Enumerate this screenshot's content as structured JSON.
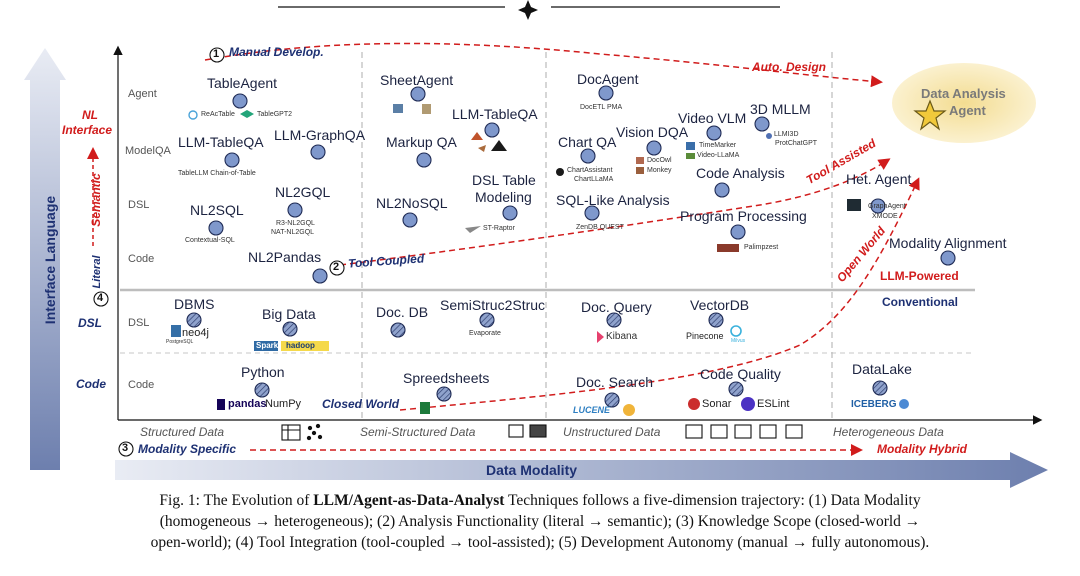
{
  "axes": {
    "y_axis_label": "Interface Language",
    "x_axis_label": "Data Modality"
  },
  "header_marks": {
    "manual_develop": "Manual Develop.",
    "auto_design": "Auto. Design",
    "tool_coupled": "Tool Coupled",
    "tool_assisted": "Tool Assisted",
    "open_world": "Open World",
    "closed_world": "Closed World",
    "semantic": "Semantic",
    "literal": "Literal",
    "modality_specific": "Modality Specific",
    "modality_hybrid": "Modality Hybrid",
    "llm_powered": "LLM-Powered",
    "conventional": "Conventional",
    "num1": "1",
    "num2": "2",
    "num3": "3",
    "num4": "4"
  },
  "left_labels": {
    "nl_interface_1": "NL",
    "nl_interface_2": "Interface",
    "dsl": "DSL",
    "code": "Code"
  },
  "row_labels": {
    "agent": "Agent",
    "modelqa": "ModelQA",
    "dsl": "DSL",
    "code": "Code",
    "dsl_lower": "DSL",
    "code_lower": "Code"
  },
  "column_labels": {
    "structured": "Structured Data",
    "semi_structured": "Semi-Structured Data",
    "unstructured": "Unstructured Data",
    "heterogeneous": "Heterogeneous Data"
  },
  "nodes": {
    "tableagent": "TableAgent",
    "reactable": "ReAcTable",
    "tablegpt2": "TableGPT2",
    "llm_tableqa_1": "LLM-TableQA",
    "tablellm": "TableLLM  Chain-of-Table",
    "llm_graphqa": "LLM-GraphQA",
    "nl2sql": "NL2SQL",
    "contextual_sql": "Contextual-SQL",
    "nl2gql": "NL2GQL",
    "r3_nl2gql": "R3-NL2GQL",
    "nat_nl2gql": "NAT-NL2GQL",
    "nl2pandas": "NL2Pandas",
    "sheetagent": "SheetAgent",
    "markupqa": "Markup QA",
    "llm_tableqa_2": "LLM-TableQA",
    "nl2nosql": "NL2NoSQL",
    "dsl_table_1": "DSL Table",
    "dsl_table_2": "Modeling",
    "st_raptor": "ST-Raptor",
    "docagent": "DocAgent",
    "docetl": "DocETL  PMA",
    "chartqa": "Chart QA",
    "chartassistant": "ChartAssistant",
    "chartllama": "ChartLLaMA",
    "visiondqa": "Vision DQA",
    "docowl": "DocOwl",
    "monkey": "Monkey",
    "videovlm": "Video VLM",
    "timemarker": "TimeMarker",
    "videollama": "Video-LLaMA",
    "mllm3d": "3D MLLM",
    "llm3d": "LLMI3D",
    "protchatgpt": "ProtChatGPT",
    "sql_like": "SQL-Like Analysis",
    "zendb": "ZenDB   QUEST",
    "code_agent": "Code Analysis",
    "program_processing": "Program Processing",
    "palimpzest": "Palimpzest",
    "data_analysis_agent_1": "Data Analysis",
    "data_analysis_agent_2": "Agent",
    "het_agent": "Het. Agent",
    "graphagent": "GraphAgent",
    "xmode": "XMODE",
    "modality_alignment": "Modality Alignment",
    "dbms": "DBMS",
    "neo4j": "neo4j",
    "postgres": "PostgreSQL",
    "bigdata": "Big Data",
    "spark": "Spark",
    "hadoop": "hadoop",
    "docdb": "Doc. DB",
    "semistruc2struc": "SemiStruc2Struc",
    "evaporate": "Evaporate",
    "docquery": "Doc. Query",
    "kibana": "Kibana",
    "vectordb": "VectorDB",
    "pinecone": "Pinecone",
    "milvus": "Milvus",
    "python": "Python",
    "pandas": "pandas",
    "numpy": "NumPy",
    "spreadsheets": "Spreedsheets",
    "docsearch": "Doc. Search",
    "lucene": "LUCENE",
    "codequality": "Code Quality",
    "sonar": "Sonar",
    "eslint": "ESLint",
    "datalake": "DataLake",
    "iceberg": "ICEBERG"
  },
  "caption": {
    "prefix": "Fig. 1: The Evolution of ",
    "bold": "LLM/Agent-as-Data-Analyst",
    "line1_rest": " Techniques follows a five-dimension trajectory: (1) Data Modality",
    "line2": "(homogeneous → heterogeneous); (2) Analysis Functionality (literal → semantic); (3) Knowledge Scope (closed-world →",
    "line3": "open-world); (4) Tool Integration (tool-coupled → tool-assisted); (5) Development Autonomy (manual → fully autonomous)."
  },
  "colors": {
    "node_blue": "#5a79b8",
    "node_blue_light": "#8aa6d6",
    "accent_red": "#d11c1c",
    "label_blue": "#1e3173",
    "arrow_gray": "#c9ccd4",
    "bg_yellow": "#f6e7b4"
  },
  "icons": [
    "star-icon",
    "hatched-node-icon",
    "table-icon",
    "scatter-icon",
    "doc-icon",
    "image-icon",
    "video-icon",
    "cube-3d-icon"
  ]
}
